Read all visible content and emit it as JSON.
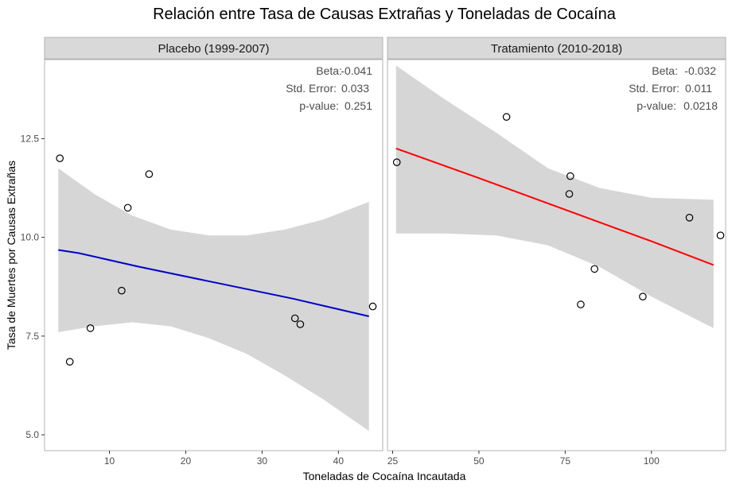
{
  "chart_data": {
    "type": "scatter",
    "title": "Relación entre Tasa de Causas Extrañas y Toneladas de Cocaína",
    "xlabel": "Toneladas de Cocaína Incautada",
    "ylabel": "Tasa de Muertes por Causas Extrañas",
    "ylim": [
      4.6,
      14.5
    ],
    "y_ticks": [
      5.0,
      7.5,
      10.0,
      12.5
    ],
    "grid": false,
    "legend": "none",
    "colors": {
      "panel_border": "#b3b3b3",
      "strip_bg": "#d9d9d9",
      "ribbon": "#d6d6d6",
      "point_stroke": "#000000"
    },
    "panels": [
      {
        "label": "Placebo (1999-2007)",
        "xlim": [
          1.5,
          45.8
        ],
        "x_ticks": [
          10,
          20,
          30,
          40
        ],
        "line_color": "#0000cc",
        "points": [
          {
            "x": 3.5,
            "y": 12.0
          },
          {
            "x": 4.8,
            "y": 6.85
          },
          {
            "x": 7.5,
            "y": 7.7
          },
          {
            "x": 11.6,
            "y": 8.65
          },
          {
            "x": 12.4,
            "y": 10.75
          },
          {
            "x": 15.2,
            "y": 11.6
          },
          {
            "x": 34.3,
            "y": 7.95
          },
          {
            "x": 35.0,
            "y": 7.8
          },
          {
            "x": 44.5,
            "y": 8.25
          }
        ],
        "fit_line": [
          {
            "x": 3.3,
            "y": 9.68
          },
          {
            "x": 6.0,
            "y": 9.6
          },
          {
            "x": 14.0,
            "y": 9.25
          },
          {
            "x": 24.0,
            "y": 8.85
          },
          {
            "x": 34.0,
            "y": 8.45
          },
          {
            "x": 44.0,
            "y": 8.0
          }
        ],
        "ci_upper": [
          {
            "x": 3.3,
            "y": 11.75
          },
          {
            "x": 8.0,
            "y": 11.1
          },
          {
            "x": 13.0,
            "y": 10.55
          },
          {
            "x": 18.0,
            "y": 10.2
          },
          {
            "x": 23.0,
            "y": 10.05
          },
          {
            "x": 28.0,
            "y": 10.05
          },
          {
            "x": 33.0,
            "y": 10.2
          },
          {
            "x": 38.0,
            "y": 10.45
          },
          {
            "x": 44.0,
            "y": 10.9
          }
        ],
        "ci_lower": [
          {
            "x": 3.3,
            "y": 7.6
          },
          {
            "x": 8.0,
            "y": 7.75
          },
          {
            "x": 13.0,
            "y": 7.85
          },
          {
            "x": 18.0,
            "y": 7.75
          },
          {
            "x": 23.0,
            "y": 7.45
          },
          {
            "x": 28.0,
            "y": 7.05
          },
          {
            "x": 33.0,
            "y": 6.5
          },
          {
            "x": 38.0,
            "y": 5.9
          },
          {
            "x": 44.0,
            "y": 5.1
          }
        ],
        "annotations": [
          {
            "label": "Beta:",
            "value": "-0.041"
          },
          {
            "label": "Std. Error:",
            "value": "0.033"
          },
          {
            "label": "p-value:",
            "value": "0.251"
          }
        ]
      },
      {
        "label": "Tratamiento (2010-2018)",
        "xlim": [
          23.5,
          121.5
        ],
        "x_ticks": [
          25,
          50,
          75,
          100
        ],
        "line_color": "#ff0000",
        "points": [
          {
            "x": 26.2,
            "y": 11.9
          },
          {
            "x": 58.0,
            "y": 13.05
          },
          {
            "x": 76.2,
            "y": 11.1
          },
          {
            "x": 76.5,
            "y": 11.55
          },
          {
            "x": 79.5,
            "y": 8.3
          },
          {
            "x": 83.5,
            "y": 9.2
          },
          {
            "x": 97.5,
            "y": 8.5
          },
          {
            "x": 111.0,
            "y": 10.5
          },
          {
            "x": 120.0,
            "y": 10.05
          }
        ],
        "fit_line": [
          {
            "x": 26.0,
            "y": 12.25
          },
          {
            "x": 50.0,
            "y": 11.5
          },
          {
            "x": 75.0,
            "y": 10.7
          },
          {
            "x": 100.0,
            "y": 9.9
          },
          {
            "x": 118.0,
            "y": 9.3
          }
        ],
        "ci_upper": [
          {
            "x": 26.0,
            "y": 14.35
          },
          {
            "x": 40.0,
            "y": 13.5
          },
          {
            "x": 55.0,
            "y": 12.65
          },
          {
            "x": 70.0,
            "y": 11.75
          },
          {
            "x": 85.0,
            "y": 11.25
          },
          {
            "x": 100.0,
            "y": 11.0
          },
          {
            "x": 118.0,
            "y": 10.95
          }
        ],
        "ci_lower": [
          {
            "x": 26.0,
            "y": 10.1
          },
          {
            "x": 40.0,
            "y": 10.1
          },
          {
            "x": 55.0,
            "y": 10.05
          },
          {
            "x": 70.0,
            "y": 9.8
          },
          {
            "x": 85.0,
            "y": 9.25
          },
          {
            "x": 100.0,
            "y": 8.5
          },
          {
            "x": 118.0,
            "y": 7.7
          }
        ],
        "annotations": [
          {
            "label": "Beta:",
            "value": "-0.032"
          },
          {
            "label": "Std. Error:",
            "value": "0.011"
          },
          {
            "label": "p-value:",
            "value": "0.0218"
          }
        ]
      }
    ]
  }
}
